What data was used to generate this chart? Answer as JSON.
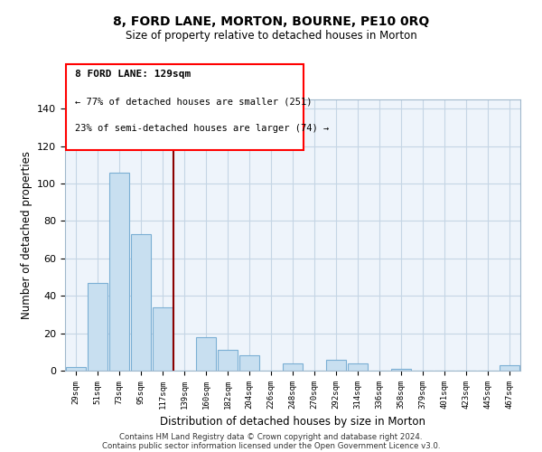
{
  "title": "8, FORD LANE, MORTON, BOURNE, PE10 0RQ",
  "subtitle": "Size of property relative to detached houses in Morton",
  "xlabel": "Distribution of detached houses by size in Morton",
  "ylabel": "Number of detached properties",
  "bar_color": "#c8dff0",
  "bar_edgecolor": "#7bafd4",
  "vline_color": "#8b0000",
  "annotation_line1": "8 FORD LANE: 129sqm",
  "annotation_line2": "← 77% of detached houses are smaller (251)",
  "annotation_line3": "23% of semi-detached houses are larger (74) →",
  "categories": [
    "29sqm",
    "51sqm",
    "73sqm",
    "95sqm",
    "117sqm",
    "139sqm",
    "160sqm",
    "182sqm",
    "204sqm",
    "226sqm",
    "248sqm",
    "270sqm",
    "292sqm",
    "314sqm",
    "336sqm",
    "358sqm",
    "379sqm",
    "401sqm",
    "423sqm",
    "445sqm",
    "467sqm"
  ],
  "values": [
    2,
    47,
    106,
    73,
    34,
    0,
    18,
    11,
    8,
    0,
    4,
    0,
    6,
    4,
    0,
    1,
    0,
    0,
    0,
    0,
    3
  ],
  "vline_pos": 5.0,
  "ylim": [
    0,
    145
  ],
  "yticks": [
    0,
    20,
    40,
    60,
    80,
    100,
    120,
    140
  ],
  "footer_line1": "Contains HM Land Registry data © Crown copyright and database right 2024.",
  "footer_line2": "Contains public sector information licensed under the Open Government Licence v3.0.",
  "background_color": "#ffffff",
  "grid_color": "#c5d5e5",
  "plot_bg_color": "#eef4fb"
}
